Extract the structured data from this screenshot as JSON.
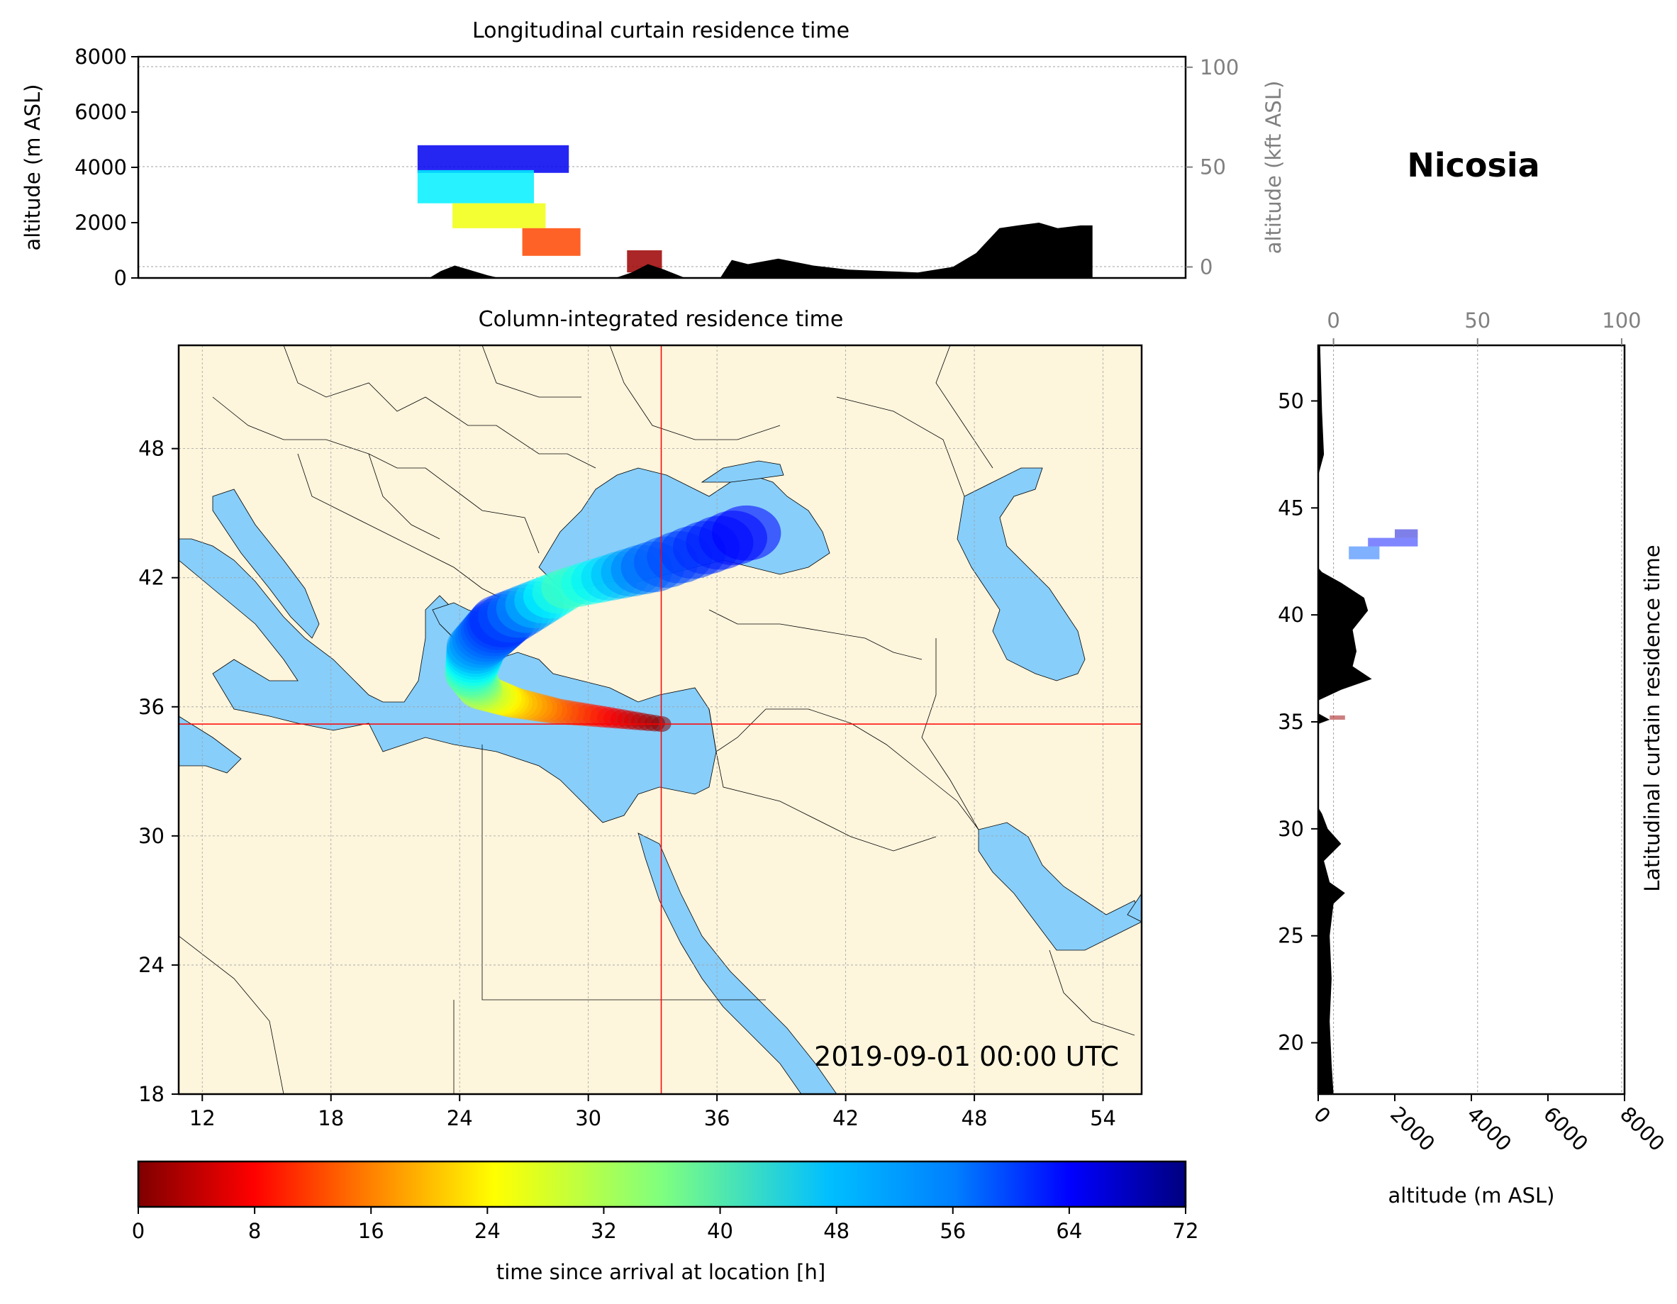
{
  "location": "Nicosia",
  "timestamp": "2019-09-01 00:00 UTC",
  "colors": {
    "land": "#fdf5dc",
    "sea": "#87cefa",
    "terrain": "#000000",
    "crosshair": "#ff0000",
    "grid": "#a0a0a0",
    "secondary_axis": "#808080"
  },
  "chart_data": [
    {
      "type": "area",
      "panel": "longitudinal-curtain",
      "title": "Longitudinal curtain residence time",
      "ylabel": "altitude (m ASL)",
      "ylabel_right": "altitude (kft ASL)",
      "ylim": [
        0,
        8000
      ],
      "yticks": [
        0,
        2000,
        4000,
        6000,
        8000
      ],
      "yticks_right": [
        0,
        50,
        100
      ],
      "xlim": [
        11,
        56
      ],
      "terrain_profile": [
        {
          "x": 11,
          "y": 0
        },
        {
          "x": 23.5,
          "y": 0
        },
        {
          "x": 24,
          "y": 250
        },
        {
          "x": 24.6,
          "y": 450
        },
        {
          "x": 25.2,
          "y": 300
        },
        {
          "x": 26,
          "y": 100
        },
        {
          "x": 26.5,
          "y": 0
        },
        {
          "x": 31.5,
          "y": 0
        },
        {
          "x": 32.2,
          "y": 200
        },
        {
          "x": 32.9,
          "y": 500
        },
        {
          "x": 33.6,
          "y": 300
        },
        {
          "x": 34.5,
          "y": 0
        },
        {
          "x": 36,
          "y": 0
        },
        {
          "x": 36.5,
          "y": 650
        },
        {
          "x": 37.2,
          "y": 500
        },
        {
          "x": 38.5,
          "y": 700
        },
        {
          "x": 40,
          "y": 450
        },
        {
          "x": 41.5,
          "y": 300
        },
        {
          "x": 43,
          "y": 250
        },
        {
          "x": 44.5,
          "y": 200
        },
        {
          "x": 46,
          "y": 400
        },
        {
          "x": 47,
          "y": 900
        },
        {
          "x": 48,
          "y": 1800
        },
        {
          "x": 48.8,
          "y": 1900
        },
        {
          "x": 49.7,
          "y": 2000
        },
        {
          "x": 50.5,
          "y": 1800
        },
        {
          "x": 51.5,
          "y": 1900
        },
        {
          "x": 52,
          "y": 1900
        },
        {
          "x": 52,
          "y": 0
        }
      ],
      "residence_bands": [
        {
          "x0": 23,
          "x1": 29.5,
          "y0": 3800,
          "y1": 4800,
          "time_h": 64
        },
        {
          "x0": 23,
          "x1": 28,
          "y0": 2700,
          "y1": 3900,
          "time_h": 46
        },
        {
          "x0": 24.5,
          "x1": 28.5,
          "y0": 1800,
          "y1": 2700,
          "time_h": 28
        },
        {
          "x0": 27.5,
          "x1": 30,
          "y0": 800,
          "y1": 1800,
          "time_h": 14
        },
        {
          "x0": 32,
          "x1": 33.5,
          "y0": 200,
          "y1": 1000,
          "time_h": 2
        }
      ]
    },
    {
      "type": "heatmap",
      "panel": "column-integrated-map",
      "title": "Column-integrated residence time",
      "xticks": [
        12,
        18,
        24,
        30,
        36,
        42,
        48,
        54
      ],
      "yticks": [
        18,
        24,
        30,
        36,
        42,
        48
      ],
      "xlim": [
        10.9,
        55.8
      ],
      "ylim": [
        18,
        52.8
      ],
      "crosshair": {
        "lon": 33.4,
        "lat": 35.2
      },
      "plume": [
        {
          "lon": 33.4,
          "lat": 35.2,
          "time_h": 0
        },
        {
          "lon": 31,
          "lat": 35.5,
          "time_h": 8
        },
        {
          "lon": 28.5,
          "lat": 35.8,
          "time_h": 16
        },
        {
          "lon": 26.5,
          "lat": 36.2,
          "time_h": 24
        },
        {
          "lon": 25,
          "lat": 36.7,
          "time_h": 32
        },
        {
          "lon": 24.5,
          "lat": 37.5,
          "time_h": 40
        },
        {
          "lon": 24.8,
          "lat": 38.8,
          "time_h": 52
        },
        {
          "lon": 26,
          "lat": 40,
          "time_h": 60
        },
        {
          "lon": 29,
          "lat": 41.5,
          "time_h": 40
        },
        {
          "lon": 33,
          "lat": 42.5,
          "time_h": 56
        },
        {
          "lon": 38,
          "lat": 44.3,
          "time_h": 64
        }
      ]
    },
    {
      "type": "area",
      "panel": "latitudinal-curtain",
      "title": "Latitudinal curtain residence time",
      "xlabel": "altitude (m ASL)",
      "xlim": [
        0,
        8000
      ],
      "xticks": [
        0,
        2000,
        4000,
        6000,
        8000
      ],
      "xticks_top": [
        0,
        50,
        100
      ],
      "ylim": [
        17.6,
        52.6
      ],
      "yticks": [
        20,
        25,
        30,
        35,
        40,
        45,
        50
      ],
      "terrain_profile": [
        {
          "lat": 17.6,
          "alt": 400
        },
        {
          "lat": 19,
          "alt": 350
        },
        {
          "lat": 21,
          "alt": 300
        },
        {
          "lat": 23,
          "alt": 350
        },
        {
          "lat": 25,
          "alt": 300
        },
        {
          "lat": 26.5,
          "alt": 400
        },
        {
          "lat": 27,
          "alt": 700
        },
        {
          "lat": 27.5,
          "alt": 300
        },
        {
          "lat": 28.5,
          "alt": 150
        },
        {
          "lat": 29.3,
          "alt": 600
        },
        {
          "lat": 30,
          "alt": 250
        },
        {
          "lat": 30.7,
          "alt": 100
        },
        {
          "lat": 31,
          "alt": 0
        },
        {
          "lat": 34.9,
          "alt": 0
        },
        {
          "lat": 35.1,
          "alt": 300
        },
        {
          "lat": 35.4,
          "alt": 0
        },
        {
          "lat": 36,
          "alt": 0
        },
        {
          "lat": 36.5,
          "alt": 600
        },
        {
          "lat": 37,
          "alt": 1400
        },
        {
          "lat": 37.6,
          "alt": 900
        },
        {
          "lat": 38.3,
          "alt": 1000
        },
        {
          "lat": 39.3,
          "alt": 900
        },
        {
          "lat": 40.2,
          "alt": 1300
        },
        {
          "lat": 40.8,
          "alt": 1200
        },
        {
          "lat": 41.5,
          "alt": 600
        },
        {
          "lat": 42,
          "alt": 100
        },
        {
          "lat": 42.2,
          "alt": 0
        },
        {
          "lat": 46.5,
          "alt": 0
        },
        {
          "lat": 47.5,
          "alt": 150
        },
        {
          "lat": 49.5,
          "alt": 100
        },
        {
          "lat": 52.6,
          "alt": 50
        }
      ],
      "residence_bands": [
        {
          "lat0": 42.6,
          "lat1": 43.2,
          "alt0": 800,
          "alt1": 1600,
          "time_h": 56
        },
        {
          "lat0": 43.2,
          "lat1": 43.6,
          "alt0": 1300,
          "alt1": 2600,
          "time_h": 62
        },
        {
          "lat0": 43.6,
          "lat1": 44.0,
          "alt0": 2000,
          "alt1": 2600,
          "time_h": 66
        },
        {
          "lat0": 35.1,
          "lat1": 35.3,
          "alt0": 300,
          "alt1": 700,
          "time_h": 2
        }
      ]
    },
    {
      "type": "colorbar",
      "panel": "colorbar",
      "label": "time since arrival at location [h]",
      "range": [
        0,
        72
      ],
      "ticks": [
        0,
        8,
        16,
        24,
        32,
        40,
        48,
        56,
        64,
        72
      ]
    }
  ]
}
